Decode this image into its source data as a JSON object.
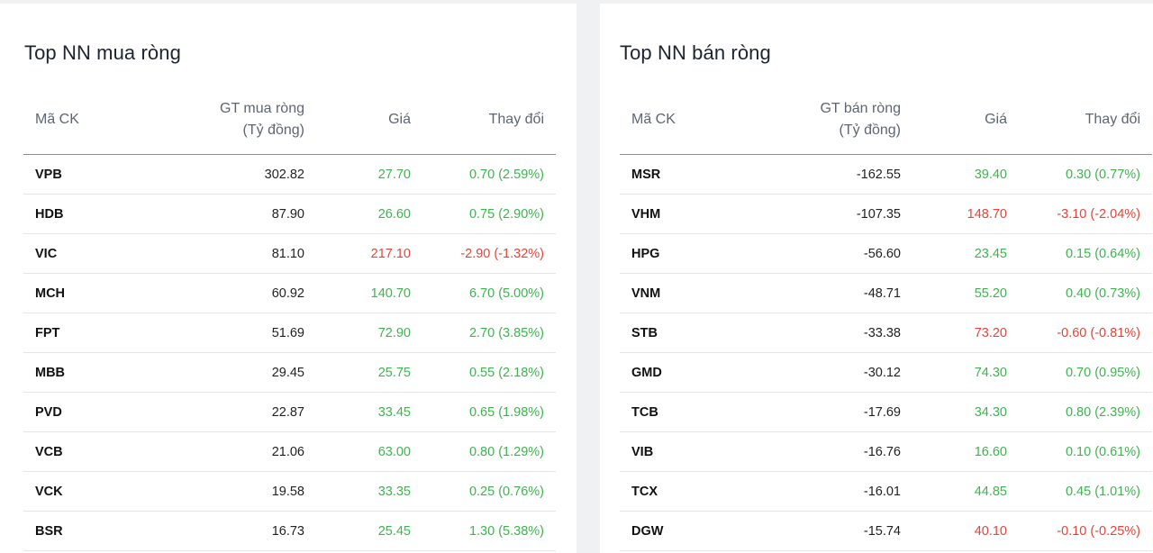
{
  "colors": {
    "up": "#3fb34f",
    "down": "#e0463a"
  },
  "buy": {
    "title": "Top NN mua ròng",
    "headers": {
      "code": "Mã CK",
      "value_l1": "GT mua ròng",
      "value_l2": "(Tỷ đồng)",
      "price": "Giá",
      "change": "Thay đổi"
    },
    "rows": [
      {
        "code": "VPB",
        "value": "302.82",
        "price": "27.70",
        "change": "0.70 (2.59%)",
        "dir": "up"
      },
      {
        "code": "HDB",
        "value": "87.90",
        "price": "26.60",
        "change": "0.75 (2.90%)",
        "dir": "up"
      },
      {
        "code": "VIC",
        "value": "81.10",
        "price": "217.10",
        "change": "-2.90 (-1.32%)",
        "dir": "down"
      },
      {
        "code": "MCH",
        "value": "60.92",
        "price": "140.70",
        "change": "6.70 (5.00%)",
        "dir": "up"
      },
      {
        "code": "FPT",
        "value": "51.69",
        "price": "72.90",
        "change": "2.70 (3.85%)",
        "dir": "up"
      },
      {
        "code": "MBB",
        "value": "29.45",
        "price": "25.75",
        "change": "0.55 (2.18%)",
        "dir": "up"
      },
      {
        "code": "PVD",
        "value": "22.87",
        "price": "33.45",
        "change": "0.65 (1.98%)",
        "dir": "up"
      },
      {
        "code": "VCB",
        "value": "21.06",
        "price": "63.00",
        "change": "0.80 (1.29%)",
        "dir": "up"
      },
      {
        "code": "VCK",
        "value": "19.58",
        "price": "33.35",
        "change": "0.25 (0.76%)",
        "dir": "up"
      },
      {
        "code": "BSR",
        "value": "16.73",
        "price": "25.45",
        "change": "1.30 (5.38%)",
        "dir": "up"
      }
    ]
  },
  "sell": {
    "title": "Top NN bán ròng",
    "headers": {
      "code": "Mã CK",
      "value_l1": "GT bán ròng",
      "value_l2": "(Tỷ đồng)",
      "price": "Giá",
      "change": "Thay đổi"
    },
    "rows": [
      {
        "code": "MSR",
        "value": "-162.55",
        "price": "39.40",
        "change": "0.30 (0.77%)",
        "dir": "up"
      },
      {
        "code": "VHM",
        "value": "-107.35",
        "price": "148.70",
        "change": "-3.10 (-2.04%)",
        "dir": "down"
      },
      {
        "code": "HPG",
        "value": "-56.60",
        "price": "23.45",
        "change": "0.15 (0.64%)",
        "dir": "up"
      },
      {
        "code": "VNM",
        "value": "-48.71",
        "price": "55.20",
        "change": "0.40 (0.73%)",
        "dir": "up"
      },
      {
        "code": "STB",
        "value": "-33.38",
        "price": "73.20",
        "change": "-0.60 (-0.81%)",
        "dir": "down"
      },
      {
        "code": "GMD",
        "value": "-30.12",
        "price": "74.30",
        "change": "0.70 (0.95%)",
        "dir": "up"
      },
      {
        "code": "TCB",
        "value": "-17.69",
        "price": "34.30",
        "change": "0.80 (2.39%)",
        "dir": "up"
      },
      {
        "code": "VIB",
        "value": "-16.76",
        "price": "16.60",
        "change": "0.10 (0.61%)",
        "dir": "up"
      },
      {
        "code": "TCX",
        "value": "-16.01",
        "price": "44.85",
        "change": "0.45 (1.01%)",
        "dir": "up"
      },
      {
        "code": "DGW",
        "value": "-15.74",
        "price": "40.10",
        "change": "-0.10 (-0.25%)",
        "dir": "down"
      }
    ]
  }
}
